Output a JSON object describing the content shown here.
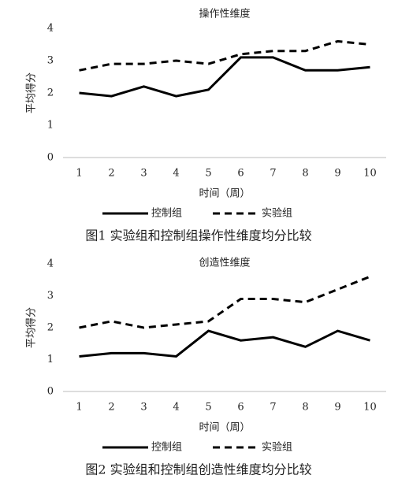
{
  "chart_data": [
    {
      "type": "line",
      "title": "操作性维度",
      "y_label": "平均得分",
      "x_label": "时间（周）",
      "caption": "图1 实验组和控制组操作性维度均分比较",
      "categories": [
        "1",
        "2",
        "3",
        "4",
        "5",
        "6",
        "7",
        "8",
        "9",
        "10"
      ],
      "series": [
        {
          "name": "控制组",
          "color": "#000000",
          "style": "solid",
          "values": [
            2.0,
            1.9,
            2.2,
            1.9,
            2.1,
            3.1,
            3.1,
            2.7,
            2.7,
            2.8
          ]
        },
        {
          "name": "实验组",
          "color": "#000000",
          "style": "dashed",
          "values": [
            2.7,
            2.9,
            2.9,
            3.0,
            2.9,
            3.2,
            3.3,
            3.3,
            3.6,
            3.5
          ]
        }
      ],
      "ylim": [
        0,
        4
      ],
      "yticks": [
        0,
        1,
        2,
        3,
        4
      ],
      "grid": false,
      "legend": "bottom"
    },
    {
      "type": "line",
      "title": "创造性维度",
      "y_label": "平均得分",
      "x_label": "时间（周）",
      "caption": "图2 实验组和控制组创造性维度均分比较",
      "categories": [
        "1",
        "2",
        "3",
        "4",
        "5",
        "6",
        "7",
        "8",
        "9",
        "10"
      ],
      "series": [
        {
          "name": "控制组",
          "color": "#000000",
          "style": "solid",
          "values": [
            1.1,
            1.2,
            1.2,
            1.1,
            1.9,
            1.6,
            1.7,
            1.4,
            1.9,
            1.6
          ]
        },
        {
          "name": "实验组",
          "color": "#000000",
          "style": "dashed",
          "values": [
            2.0,
            2.2,
            2.0,
            2.1,
            2.2,
            2.9,
            2.9,
            2.8,
            3.2,
            3.6
          ]
        }
      ],
      "ylim": [
        0,
        4
      ],
      "yticks": [
        0,
        1,
        2,
        3,
        4
      ],
      "grid": false,
      "legend": "bottom"
    }
  ]
}
